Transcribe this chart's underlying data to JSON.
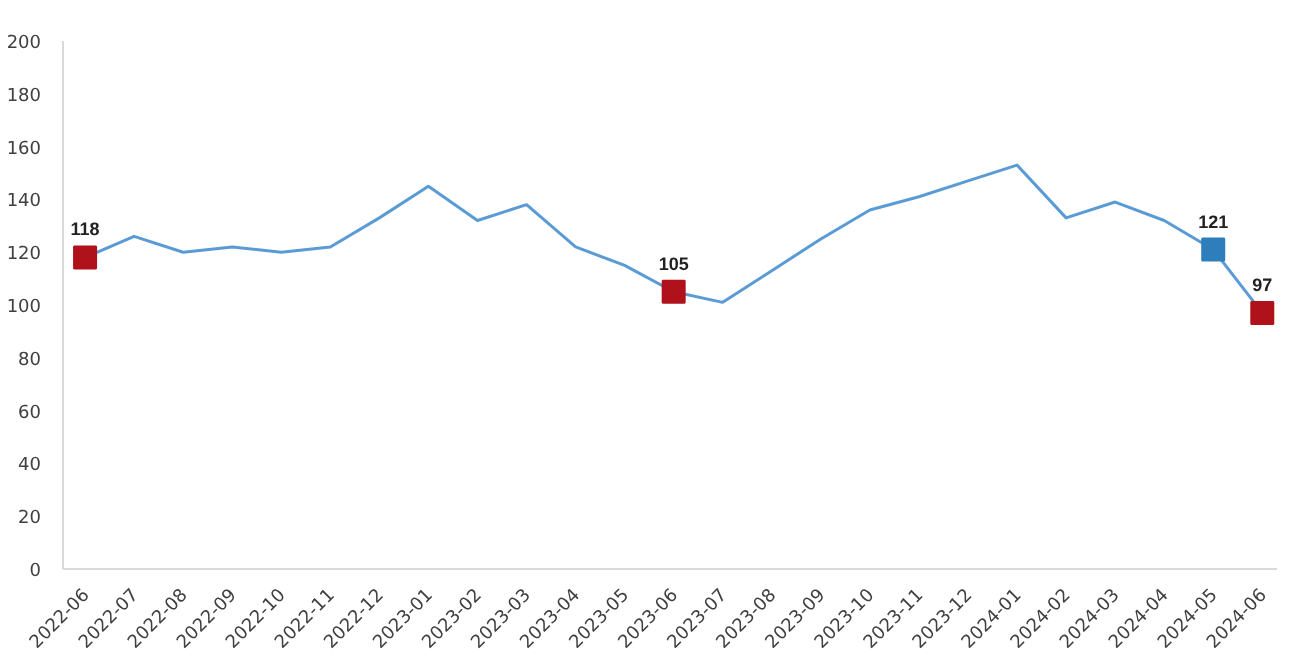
{
  "chart_data": {
    "type": "line",
    "categories": [
      "2022-06",
      "2022-07",
      "2022-08",
      "2022-09",
      "2022-10",
      "2022-11",
      "2022-12",
      "2023-01",
      "2023-02",
      "2023-03",
      "2023-04",
      "2023-05",
      "2023-06",
      "2023-07",
      "2023-08",
      "2023-09",
      "2023-10",
      "2023-11",
      "2023-12",
      "2024-01",
      "2024-02",
      "2024-03",
      "2024-04",
      "2024-05",
      "2024-06"
    ],
    "series": [
      {
        "color": "#5b9bd5",
        "values": [
          118,
          126,
          120,
          122,
          120,
          122,
          133,
          145,
          132,
          138,
          122,
          115,
          105,
          101,
          113,
          125,
          136,
          141,
          147,
          153,
          133,
          139,
          132,
          121,
          97
        ]
      },
      {
        "type": "scatter",
        "marker": "square",
        "values": [
          118,
          null,
          null,
          null,
          null,
          null,
          null,
          null,
          null,
          null,
          null,
          null,
          105,
          null,
          null,
          null,
          null,
          null,
          null,
          null,
          null,
          null,
          null,
          121,
          97
        ],
        "colors": [
          "#b0121b",
          null,
          null,
          null,
          null,
          null,
          null,
          null,
          null,
          null,
          null,
          null,
          "#b0121b",
          null,
          null,
          null,
          null,
          null,
          null,
          null,
          null,
          null,
          null,
          "#2e7ebb",
          "#b0121b"
        ],
        "value_labels": [
          "118",
          null,
          null,
          null,
          null,
          null,
          null,
          null,
          null,
          null,
          null,
          null,
          "105",
          null,
          null,
          null,
          null,
          null,
          null,
          null,
          null,
          null,
          null,
          "121",
          "97"
        ]
      }
    ],
    "ylim": [
      0,
      200
    ],
    "yticks": [
      0,
      20,
      40,
      60,
      80,
      100,
      120,
      140,
      160,
      180,
      200
    ]
  }
}
